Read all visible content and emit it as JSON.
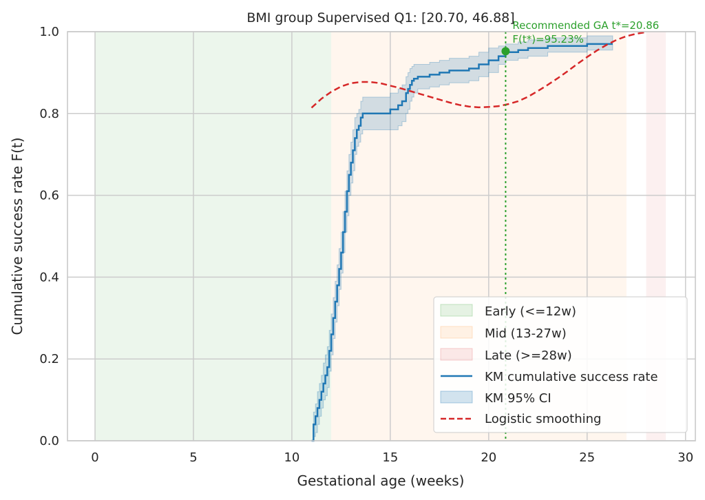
{
  "chart_data": {
    "type": "line",
    "title": "BMI group Supervised Q1: [20.70, 46.88]",
    "xlabel": "Gestational age (weeks)",
    "ylabel": "Cumulative success rate F(t)",
    "xlim": [
      -1.4,
      30.5
    ],
    "ylim": [
      0,
      1
    ],
    "xticks": [
      0,
      5,
      10,
      15,
      20,
      25,
      30
    ],
    "yticks": [
      0.0,
      0.2,
      0.4,
      0.6,
      0.8,
      1.0
    ],
    "xtick_labels": [
      "0",
      "5",
      "10",
      "15",
      "20",
      "25",
      "30"
    ],
    "ytick_labels": [
      "0.0",
      "0.2",
      "0.4",
      "0.6",
      "0.8",
      "1.0"
    ],
    "grid": true,
    "legend_position": "lower-right",
    "regions": [
      {
        "name": "Early (<=12w)",
        "x": [
          0,
          12
        ],
        "color": "#2ca02c",
        "opacity": 0.09
      },
      {
        "name": "Mid (13-27w)",
        "x": [
          12,
          27
        ],
        "color": "#ff7f0e",
        "opacity": 0.07
      },
      {
        "name": "Late (>=28w)",
        "x": [
          28,
          29
        ],
        "color": "#d62728",
        "opacity": 0.07
      }
    ],
    "series": [
      {
        "name": "KM cumulative success rate",
        "kind": "step",
        "color": "#1f77b4",
        "x": [
          11.0,
          11.1,
          11.2,
          11.3,
          11.4,
          11.5,
          11.6,
          11.7,
          11.8,
          11.9,
          12.0,
          12.1,
          12.2,
          12.3,
          12.4,
          12.5,
          12.6,
          12.7,
          12.8,
          12.9,
          13.0,
          13.1,
          13.2,
          13.3,
          13.4,
          13.5,
          13.6,
          13.7,
          13.8,
          13.9,
          14.0,
          15.0,
          15.4,
          15.6,
          15.8,
          15.9,
          16.0,
          16.1,
          16.2,
          16.4,
          16.6,
          17.0,
          17.5,
          18.0,
          18.5,
          19.0,
          19.5,
          20.0,
          20.5,
          20.86,
          21.5,
          22.0,
          23.0,
          24.0,
          25.0,
          26.0,
          26.3
        ],
        "y": [
          0.0,
          0.04,
          0.06,
          0.08,
          0.1,
          0.12,
          0.14,
          0.16,
          0.18,
          0.22,
          0.26,
          0.3,
          0.34,
          0.38,
          0.42,
          0.46,
          0.51,
          0.56,
          0.61,
          0.65,
          0.68,
          0.71,
          0.74,
          0.76,
          0.77,
          0.79,
          0.8,
          0.8,
          0.8,
          0.8,
          0.8,
          0.81,
          0.82,
          0.83,
          0.85,
          0.86,
          0.87,
          0.88,
          0.885,
          0.89,
          0.89,
          0.895,
          0.9,
          0.905,
          0.905,
          0.91,
          0.92,
          0.93,
          0.94,
          0.95,
          0.955,
          0.96,
          0.965,
          0.965,
          0.97,
          0.97,
          0.97
        ]
      },
      {
        "name": "KM 95% CI",
        "kind": "band",
        "color": "#1f77b4",
        "x": [
          11.0,
          11.1,
          11.2,
          11.3,
          11.4,
          11.5,
          11.6,
          11.7,
          11.8,
          11.9,
          12.0,
          12.1,
          12.2,
          12.3,
          12.4,
          12.5,
          12.6,
          12.7,
          12.8,
          12.9,
          13.0,
          13.1,
          13.2,
          13.3,
          13.4,
          13.5,
          13.6,
          13.7,
          13.8,
          13.9,
          14.0,
          15.0,
          15.4,
          15.6,
          15.8,
          15.9,
          16.0,
          16.1,
          16.2,
          16.4,
          16.6,
          17.0,
          17.5,
          18.0,
          18.5,
          19.0,
          19.5,
          20.0,
          20.5,
          20.86,
          21.5,
          22.0,
          23.0,
          24.0,
          25.0,
          26.0,
          26.3
        ],
        "lower": [
          0.0,
          0.01,
          0.02,
          0.04,
          0.06,
          0.08,
          0.1,
          0.11,
          0.13,
          0.17,
          0.21,
          0.25,
          0.29,
          0.33,
          0.37,
          0.41,
          0.46,
          0.51,
          0.55,
          0.6,
          0.63,
          0.66,
          0.7,
          0.72,
          0.73,
          0.75,
          0.76,
          0.76,
          0.76,
          0.76,
          0.76,
          0.76,
          0.77,
          0.78,
          0.8,
          0.81,
          0.83,
          0.84,
          0.85,
          0.86,
          0.86,
          0.865,
          0.87,
          0.875,
          0.875,
          0.88,
          0.89,
          0.9,
          0.92,
          0.93,
          0.935,
          0.94,
          0.95,
          0.95,
          0.955,
          0.955,
          0.955
        ],
        "upper": [
          0.0,
          0.07,
          0.09,
          0.12,
          0.14,
          0.16,
          0.19,
          0.21,
          0.23,
          0.27,
          0.31,
          0.35,
          0.39,
          0.43,
          0.47,
          0.51,
          0.56,
          0.61,
          0.66,
          0.7,
          0.73,
          0.76,
          0.79,
          0.8,
          0.81,
          0.83,
          0.84,
          0.84,
          0.84,
          0.84,
          0.84,
          0.85,
          0.86,
          0.87,
          0.89,
          0.9,
          0.91,
          0.915,
          0.92,
          0.92,
          0.92,
          0.925,
          0.93,
          0.935,
          0.935,
          0.94,
          0.95,
          0.96,
          0.965,
          0.97,
          0.975,
          0.98,
          0.985,
          0.985,
          0.99,
          0.99,
          0.99
        ]
      },
      {
        "name": "Logistic smoothing",
        "kind": "dashed",
        "color": "#d62728",
        "x": [
          11.0,
          11.5,
          12.0,
          12.5,
          13.0,
          13.5,
          14.0,
          14.5,
          15.0,
          15.5,
          16.0,
          16.5,
          17.0,
          17.5,
          18.0,
          18.5,
          19.0,
          19.5,
          20.0,
          20.5,
          21.0,
          21.5,
          22.0,
          22.5,
          23.0,
          23.5,
          24.0,
          24.5,
          25.0,
          25.5,
          26.0,
          26.5,
          27.0,
          27.5,
          28.0
        ],
        "y": [
          0.814,
          0.836,
          0.853,
          0.866,
          0.874,
          0.877,
          0.877,
          0.874,
          0.868,
          0.862,
          0.855,
          0.848,
          0.841,
          0.834,
          0.827,
          0.821,
          0.817,
          0.815,
          0.816,
          0.818,
          0.823,
          0.83,
          0.841,
          0.855,
          0.87,
          0.886,
          0.903,
          0.921,
          0.938,
          0.954,
          0.968,
          0.98,
          0.989,
          0.995,
          0.999
        ]
      }
    ],
    "recommendation": {
      "x": 20.86,
      "y": 0.9523,
      "color": "#2ca02c",
      "line1": "Recommended GA t*=20.86",
      "line2": "F(t*)=95.23%"
    }
  }
}
